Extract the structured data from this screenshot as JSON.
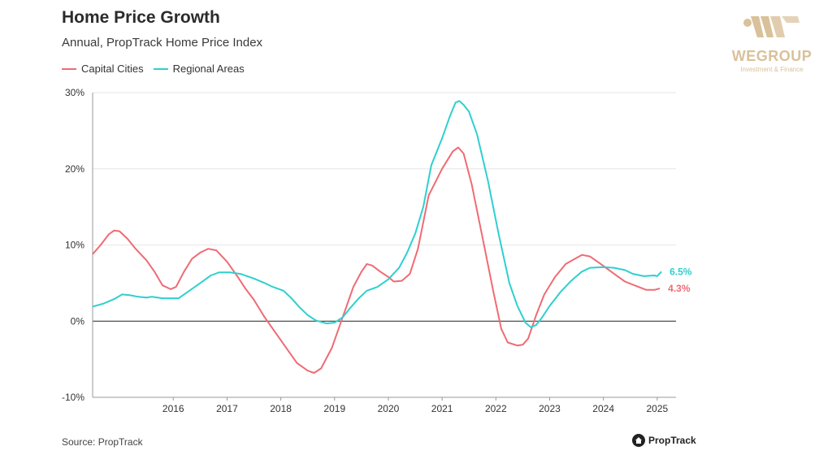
{
  "header": {
    "title": "Home Price Growth",
    "subtitle": "Annual, PropTrack Home Price Index"
  },
  "legend": [
    {
      "label": "Capital Cities",
      "color": "#ef6b74"
    },
    {
      "label": "Regional Areas",
      "color": "#2fcfcf"
    }
  ],
  "footer": {
    "source": "Source: PropTrack",
    "brand": "PropTrack"
  },
  "logo": {
    "name": "WEGROUP",
    "tagline": "Investment & Finance",
    "color": "#d9c19a",
    "icon": "wegroup-logo-icon"
  },
  "chart_data": {
    "type": "line",
    "title": "Home Price Growth",
    "subtitle": "Annual, PropTrack Home Price Index",
    "xlim": [
      2015.0,
      2025.85
    ],
    "ylim": [
      -10,
      30
    ],
    "y_ticks": [
      -10,
      0,
      10,
      20,
      30
    ],
    "y_tick_labels": [
      "-10%",
      "0%",
      "10%",
      "20%",
      "30%"
    ],
    "x_ticks": [
      2016,
      2017,
      2018,
      2019,
      2020,
      2021,
      2022,
      2023,
      2024,
      2025
    ],
    "x_tick_labels": [
      "2016",
      "2017",
      "2018",
      "2019",
      "2020",
      "2021",
      "2022",
      "2023",
      "2024",
      "2025"
    ],
    "grid": "horizontal",
    "zero_line": true,
    "legend_position": "top-left",
    "series": [
      {
        "name": "Capital Cities",
        "color": "#ef6b74",
        "end_label": "4.3%",
        "points": [
          [
            2015.0,
            8.8
          ],
          [
            2015.15,
            10.0
          ],
          [
            2015.3,
            11.4
          ],
          [
            2015.4,
            11.9
          ],
          [
            2015.5,
            11.8
          ],
          [
            2015.65,
            10.8
          ],
          [
            2015.8,
            9.5
          ],
          [
            2016.0,
            8.0
          ],
          [
            2016.15,
            6.5
          ],
          [
            2016.3,
            4.7
          ],
          [
            2016.45,
            4.2
          ],
          [
            2016.55,
            4.5
          ],
          [
            2016.7,
            6.5
          ],
          [
            2016.85,
            8.2
          ],
          [
            2017.0,
            9.0
          ],
          [
            2017.15,
            9.5
          ],
          [
            2017.3,
            9.3
          ],
          [
            2017.5,
            7.8
          ],
          [
            2017.7,
            5.8
          ],
          [
            2017.85,
            4.2
          ],
          [
            2018.0,
            2.8
          ],
          [
            2018.2,
            0.5
          ],
          [
            2018.4,
            -1.5
          ],
          [
            2018.6,
            -3.5
          ],
          [
            2018.8,
            -5.5
          ],
          [
            2019.0,
            -6.5
          ],
          [
            2019.12,
            -6.8
          ],
          [
            2019.25,
            -6.2
          ],
          [
            2019.45,
            -3.5
          ],
          [
            2019.65,
            0.5
          ],
          [
            2019.85,
            4.5
          ],
          [
            2020.0,
            6.5
          ],
          [
            2020.1,
            7.5
          ],
          [
            2020.2,
            7.3
          ],
          [
            2020.35,
            6.5
          ],
          [
            2020.5,
            5.8
          ],
          [
            2020.6,
            5.2
          ],
          [
            2020.75,
            5.3
          ],
          [
            2020.9,
            6.2
          ],
          [
            2021.05,
            9.5
          ],
          [
            2021.25,
            16.5
          ],
          [
            2021.5,
            20.0
          ],
          [
            2021.7,
            22.3
          ],
          [
            2021.8,
            22.8
          ],
          [
            2021.9,
            22.0
          ],
          [
            2022.05,
            18.0
          ],
          [
            2022.25,
            11.0
          ],
          [
            2022.45,
            4.0
          ],
          [
            2022.6,
            -1.0
          ],
          [
            2022.72,
            -2.8
          ],
          [
            2022.9,
            -3.2
          ],
          [
            2023.0,
            -3.1
          ],
          [
            2023.1,
            -2.3
          ],
          [
            2023.25,
            0.8
          ],
          [
            2023.4,
            3.5
          ],
          [
            2023.6,
            5.8
          ],
          [
            2023.8,
            7.5
          ],
          [
            2024.0,
            8.3
          ],
          [
            2024.1,
            8.7
          ],
          [
            2024.25,
            8.5
          ],
          [
            2024.45,
            7.5
          ],
          [
            2024.7,
            6.2
          ],
          [
            2024.9,
            5.2
          ],
          [
            2025.15,
            4.5
          ],
          [
            2025.3,
            4.1
          ],
          [
            2025.45,
            4.1
          ],
          [
            2025.55,
            4.3
          ]
        ]
      },
      {
        "name": "Regional Areas",
        "color": "#2fcfcf",
        "end_label": "6.5%",
        "points": [
          [
            2015.0,
            1.9
          ],
          [
            2015.2,
            2.3
          ],
          [
            2015.4,
            2.9
          ],
          [
            2015.55,
            3.5
          ],
          [
            2015.7,
            3.4
          ],
          [
            2015.85,
            3.2
          ],
          [
            2016.0,
            3.1
          ],
          [
            2016.1,
            3.2
          ],
          [
            2016.3,
            3.0
          ],
          [
            2016.6,
            3.0
          ],
          [
            2016.8,
            4.0
          ],
          [
            2017.0,
            5.0
          ],
          [
            2017.2,
            6.0
          ],
          [
            2017.35,
            6.4
          ],
          [
            2017.55,
            6.4
          ],
          [
            2017.75,
            6.2
          ],
          [
            2018.0,
            5.6
          ],
          [
            2018.2,
            5.0
          ],
          [
            2018.35,
            4.5
          ],
          [
            2018.55,
            4.0
          ],
          [
            2018.7,
            3.0
          ],
          [
            2018.85,
            1.8
          ],
          [
            2019.0,
            0.8
          ],
          [
            2019.15,
            0.1
          ],
          [
            2019.35,
            -0.3
          ],
          [
            2019.5,
            -0.2
          ],
          [
            2019.65,
            0.5
          ],
          [
            2019.8,
            1.8
          ],
          [
            2019.95,
            3.0
          ],
          [
            2020.1,
            4.0
          ],
          [
            2020.3,
            4.5
          ],
          [
            2020.5,
            5.5
          ],
          [
            2020.7,
            7.0
          ],
          [
            2020.85,
            9.0
          ],
          [
            2021.0,
            11.5
          ],
          [
            2021.15,
            15.0
          ],
          [
            2021.3,
            20.5
          ],
          [
            2021.5,
            24.0
          ],
          [
            2021.65,
            27.0
          ],
          [
            2021.75,
            28.7
          ],
          [
            2021.82,
            28.9
          ],
          [
            2021.9,
            28.4
          ],
          [
            2022.0,
            27.5
          ],
          [
            2022.15,
            24.5
          ],
          [
            2022.35,
            18.5
          ],
          [
            2022.55,
            11.5
          ],
          [
            2022.75,
            5.0
          ],
          [
            2022.9,
            2.0
          ],
          [
            2023.05,
            -0.2
          ],
          [
            2023.15,
            -0.8
          ],
          [
            2023.25,
            -0.5
          ],
          [
            2023.35,
            0.4
          ],
          [
            2023.5,
            2.0
          ],
          [
            2023.7,
            3.8
          ],
          [
            2023.9,
            5.3
          ],
          [
            2024.1,
            6.5
          ],
          [
            2024.25,
            7.0
          ],
          [
            2024.5,
            7.1
          ],
          [
            2024.7,
            7.0
          ],
          [
            2024.9,
            6.7
          ],
          [
            2025.05,
            6.2
          ],
          [
            2025.25,
            5.9
          ],
          [
            2025.45,
            6.0
          ],
          [
            2025.5,
            5.9
          ],
          [
            2025.58,
            6.5
          ]
        ]
      }
    ]
  }
}
